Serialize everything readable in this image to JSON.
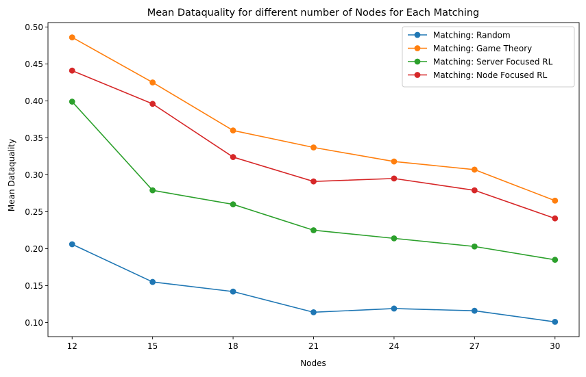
{
  "chart_data": {
    "type": "line",
    "title": "Mean Dataquality for different number of Nodes for Each Matching",
    "xlabel": "Nodes",
    "ylabel": "Mean Dataquality",
    "x": [
      12,
      15,
      18,
      21,
      24,
      27,
      30
    ],
    "xticks": [
      "12",
      "15",
      "18",
      "21",
      "24",
      "27",
      "30"
    ],
    "yticks": [
      "0.10",
      "0.15",
      "0.20",
      "0.25",
      "0.30",
      "0.35",
      "0.40",
      "0.45",
      "0.50"
    ],
    "ytick_values": [
      0.1,
      0.15,
      0.2,
      0.25,
      0.3,
      0.35,
      0.4,
      0.45,
      0.5
    ],
    "xlim": [
      11.1,
      30.9
    ],
    "ylim": [
      0.081,
      0.506
    ],
    "legend_position": "top-right",
    "grid": false,
    "series": [
      {
        "name": "Matching: Random",
        "color": "#1f77b4",
        "values": [
          0.206,
          0.155,
          0.142,
          0.114,
          0.119,
          0.116,
          0.101
        ]
      },
      {
        "name": "Matching: Game Theory",
        "color": "#ff7f0e",
        "values": [
          0.486,
          0.425,
          0.36,
          0.337,
          0.318,
          0.307,
          0.265
        ]
      },
      {
        "name": "Matching: Server Focused RL",
        "color": "#2ca02c",
        "values": [
          0.399,
          0.279,
          0.26,
          0.225,
          0.214,
          0.203,
          0.185
        ]
      },
      {
        "name": "Matching: Node Focused RL",
        "color": "#d62728",
        "values": [
          0.441,
          0.396,
          0.324,
          0.291,
          0.295,
          0.279,
          0.241
        ]
      }
    ]
  }
}
